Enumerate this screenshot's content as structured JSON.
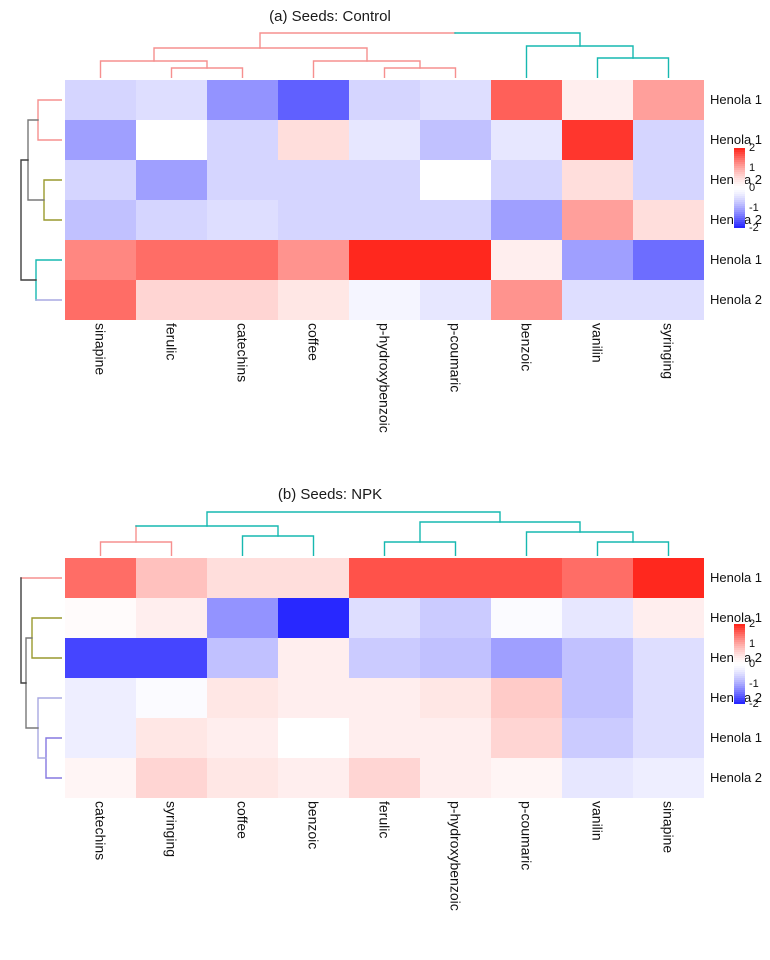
{
  "figure": {
    "background": "#ffffff"
  },
  "legend": {
    "ticks": [
      "2",
      "1",
      "0",
      "-1",
      "-2"
    ],
    "tick_values": [
      2,
      1,
      0,
      -1,
      -2
    ],
    "scale_min": -2,
    "scale_max": 2,
    "high_color": "#ff281e",
    "mid_color": "#ffffff",
    "low_color": "#2828ff"
  },
  "dendrogram_colors": {
    "pink": "#f6908f",
    "teal": "#17b8b0",
    "olive": "#99992e",
    "gray": "#787878",
    "dark": "#3f3f3f",
    "purple": "#8678e0",
    "light_purple": "#a8a8e2"
  },
  "chart_data": [
    {
      "type": "heatmap",
      "title": "(a) Seeds: Control",
      "legend_position": "right",
      "row_dendrogram": true,
      "col_dendrogram": true,
      "scale": {
        "min": -2,
        "max": 2
      },
      "columns": [
        "sinapine",
        "ferulic",
        "catechins",
        "coffee",
        "p-hydroxybenzoic",
        "p-coumaric",
        "benzoic",
        "vanilin",
        "syringing"
      ],
      "rows": [
        "Henola 1",
        "Henola 1",
        "Henola 2",
        "Henola 2",
        "Henola 1",
        "Henola 2"
      ],
      "values": [
        [
          -0.6,
          -0.5,
          -1.2,
          -1.6,
          -0.6,
          -0.5,
          1.6,
          0.3,
          1.1
        ],
        [
          -1.1,
          0.0,
          -0.6,
          0.5,
          -0.4,
          -0.8,
          -0.4,
          1.9,
          -0.6
        ],
        [
          -0.6,
          -1.1,
          -0.6,
          -0.6,
          -0.6,
          0.0,
          -0.6,
          0.5,
          -0.6
        ],
        [
          -0.8,
          -0.6,
          -0.5,
          -0.6,
          -0.6,
          -0.6,
          -1.1,
          1.1,
          0.5
        ],
        [
          1.3,
          1.5,
          1.5,
          1.2,
          2.0,
          2.0,
          0.3,
          -1.1,
          -1.5
        ],
        [
          1.5,
          0.6,
          0.6,
          0.4,
          -0.2,
          -0.4,
          1.2,
          -0.5,
          -0.5
        ]
      ]
    },
    {
      "type": "heatmap",
      "title": "(b) Seeds: NPK",
      "legend_position": "right",
      "row_dendrogram": true,
      "col_dendrogram": true,
      "scale": {
        "min": -2,
        "max": 2
      },
      "columns": [
        "catechins",
        "syringing",
        "coffee",
        "benzoic",
        "ferulic",
        "p-hydroxybenzoic",
        "p-coumaric",
        "vanilin",
        "sinapine"
      ],
      "rows": [
        "Henola 1",
        "Henola 1",
        "Henola 2",
        "Henola 2",
        "Henola 1",
        "Henola 2"
      ],
      "values": [
        [
          1.5,
          0.8,
          0.5,
          0.5,
          1.7,
          1.7,
          1.7,
          1.5,
          2.0
        ],
        [
          0.1,
          0.3,
          -1.2,
          -2.0,
          -0.5,
          -0.7,
          -0.1,
          -0.4,
          0.3
        ],
        [
          -1.8,
          -1.8,
          -0.8,
          0.3,
          -0.7,
          -0.8,
          -1.1,
          -0.8,
          -0.5
        ],
        [
          -0.3,
          -0.1,
          0.4,
          0.3,
          0.3,
          0.4,
          0.7,
          -0.8,
          -0.5
        ],
        [
          -0.3,
          0.4,
          0.3,
          0.0,
          0.3,
          0.3,
          0.6,
          -0.7,
          -0.5
        ],
        [
          0.2,
          0.6,
          0.4,
          0.3,
          0.6,
          0.3,
          0.2,
          -0.4,
          -0.3
        ]
      ]
    }
  ]
}
